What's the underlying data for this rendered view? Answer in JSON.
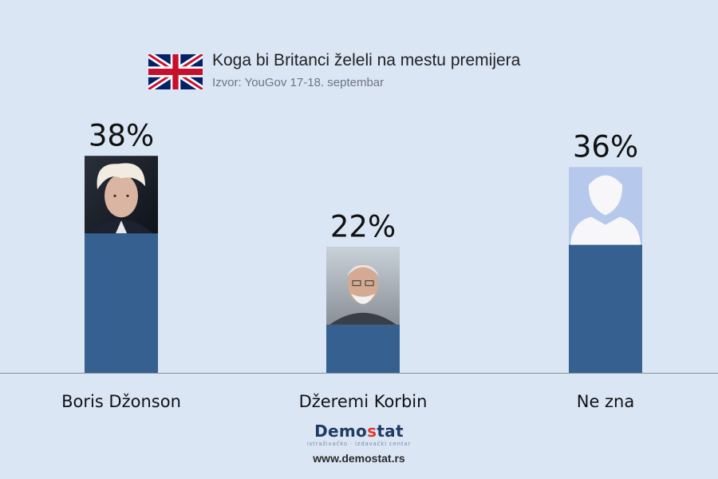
{
  "header": {
    "flag_icon": "union-jack-flag-icon",
    "title": "Koga bi Britanci želeli na mestu premijera",
    "subtitle": "Izvor: YouGov 17-18. septembar"
  },
  "chart_data": {
    "type": "bar",
    "title": "Koga bi Britanci želeli na mestu premijera",
    "subtitle": "Izvor: YouGov 17-18. septembar",
    "categories": [
      "Boris Džonson",
      "Džeremi Korbin",
      "Ne zna"
    ],
    "values": [
      38,
      22,
      36
    ],
    "value_labels": [
      "38%",
      "22%",
      "36%"
    ],
    "xlabel": "",
    "ylabel": "",
    "ylim": [
      0,
      40
    ],
    "grid": false,
    "legend": "none",
    "bar_color": "#36608f",
    "bar_images": [
      "boris-johnson-photo",
      "jeremy-corbyn-photo",
      "unknown-person-silhouette-icon"
    ]
  },
  "footer": {
    "brand_main": "Demo",
    "brand_accent": "s",
    "brand_rest": "tat",
    "tagline": "istraživačko · izdavački  centar",
    "url": "www.demostat.rs"
  },
  "colors": {
    "background": "#dbe6f5",
    "bar": "#36608f",
    "brand": "#1f3c66",
    "brand_accent": "#e03a2f"
  }
}
